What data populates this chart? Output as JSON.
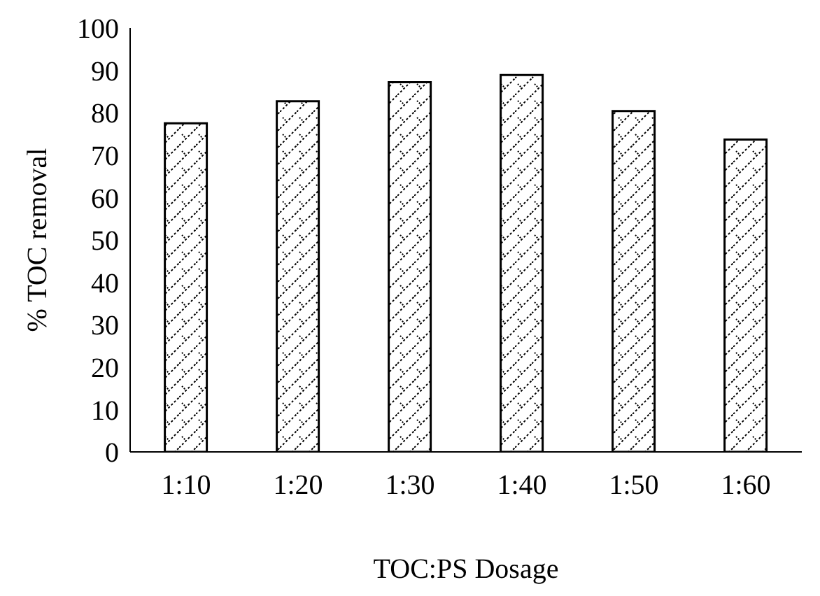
{
  "chart_data": {
    "type": "bar",
    "xlabel": "TOC:PS Dosage",
    "ylabel": "% TOC removal",
    "categories": [
      "1:10",
      "1:20",
      "1:30",
      "1:40",
      "1:50",
      "1:60"
    ],
    "values": [
      77.5,
      82.7,
      87.2,
      88.9,
      80.4,
      73.7
    ],
    "color": "#000000",
    "ylim": [
      0,
      100
    ],
    "yticks": [
      0,
      10,
      20,
      30,
      40,
      50,
      60,
      70,
      80,
      90,
      100
    ],
    "grid": false,
    "legend": false
  }
}
